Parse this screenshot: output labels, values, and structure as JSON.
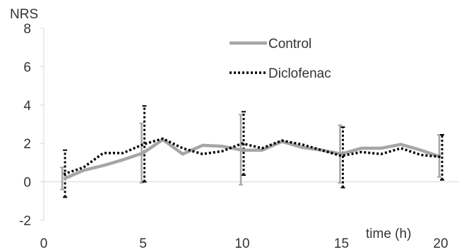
{
  "chart_data": {
    "type": "line",
    "ylabel": "NRS",
    "xlabel": "time (h)",
    "xlim": [
      0,
      21
    ],
    "ylim": [
      -2,
      8
    ],
    "x_ticks": [
      0,
      5,
      10,
      15,
      20
    ],
    "y_ticks": [
      -2,
      0,
      2,
      4,
      6,
      8
    ],
    "grid": false,
    "legend_position": "top-right",
    "series": [
      {
        "name": "Control",
        "style": "solid",
        "color": "#a6a6a6",
        "x": [
          1,
          2,
          3,
          4,
          5,
          6,
          7,
          8,
          9,
          10,
          11,
          12,
          13,
          14,
          15,
          16,
          17,
          18,
          19,
          20
        ],
        "y": [
          0.15,
          0.6,
          0.85,
          1.15,
          1.5,
          2.2,
          1.45,
          1.9,
          1.85,
          1.65,
          1.65,
          2.1,
          1.8,
          1.65,
          1.45,
          1.75,
          1.75,
          1.95,
          1.65,
          1.3
        ],
        "error_bars": [
          {
            "x": 1,
            "low": -0.4,
            "high": 0.75
          },
          {
            "x": 5,
            "low": -0.05,
            "high": 3.05
          },
          {
            "x": 10,
            "low": -0.15,
            "high": 3.5
          },
          {
            "x": 15,
            "low": -0.05,
            "high": 2.95
          },
          {
            "x": 20,
            "low": 0.25,
            "high": 2.45
          }
        ]
      },
      {
        "name": "Diclofenac",
        "style": "dotted",
        "color": "#000000",
        "x": [
          1,
          2,
          3,
          4,
          5,
          6,
          7,
          8,
          9,
          10,
          11,
          12,
          13,
          14,
          15,
          16,
          17,
          18,
          19,
          20
        ],
        "y": [
          0.4,
          0.75,
          1.5,
          1.5,
          1.95,
          2.25,
          1.75,
          1.45,
          1.6,
          2.0,
          1.75,
          2.15,
          1.95,
          1.65,
          1.35,
          1.55,
          1.45,
          1.75,
          1.4,
          1.3
        ],
        "error_bars": [
          {
            "x": 1,
            "low": -0.8,
            "high": 1.65
          },
          {
            "x": 5,
            "low": 0.0,
            "high": 3.95
          },
          {
            "x": 10,
            "low": 0.35,
            "high": 3.65
          },
          {
            "x": 15,
            "low": -0.3,
            "high": 2.85
          },
          {
            "x": 20,
            "low": 0.1,
            "high": 2.45
          }
        ]
      }
    ]
  }
}
